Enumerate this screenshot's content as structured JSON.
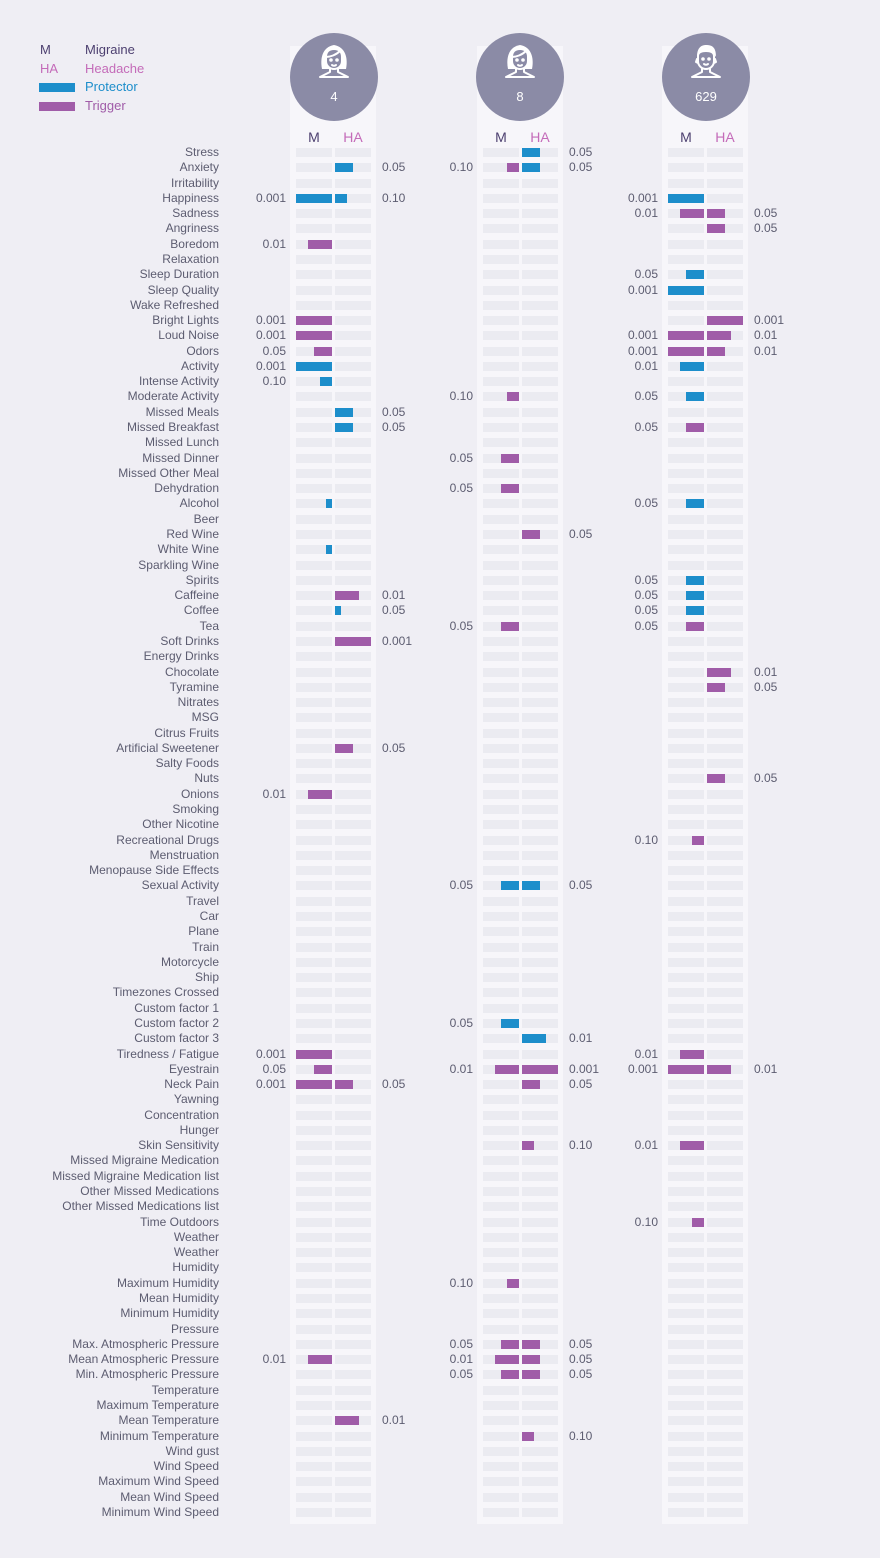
{
  "legend": {
    "migraine_key": "M",
    "migraine_label": "Migraine",
    "headache_key": "HA",
    "headache_label": "Headache",
    "protector_label": "Protector",
    "trigger_label": "Trigger"
  },
  "colors": {
    "protector": "#1d8ecb",
    "trigger": "#a05ca8",
    "migraine_text": "#4d4070",
    "headache_text": "#c46bb9",
    "avatar": "#8b8ba6"
  },
  "chart_data": {
    "type": "bar",
    "value_scale": "bar length encodes strength of effect; printed value is p-value",
    "columns": [
      {
        "count": "4",
        "icon": "female-avatar-icon",
        "m_label": "M",
        "ha_label": "HA"
      },
      {
        "count": "8",
        "icon": "female-avatar-icon",
        "m_label": "M",
        "ha_label": "HA"
      },
      {
        "count": "629",
        "icon": "male-avatar-icon",
        "m_label": "M",
        "ha_label": "HA"
      }
    ],
    "factors": [
      "Stress",
      "Anxiety",
      "Irritability",
      "Happiness",
      "Sadness",
      "Angriness",
      "Boredom",
      "Relaxation",
      "Sleep Duration",
      "Sleep Quality",
      "Wake Refreshed",
      "Bright Lights",
      "Loud Noise",
      "Odors",
      "Activity",
      "Intense Activity",
      "Moderate Activity",
      "Missed Meals",
      "Missed Breakfast",
      "Missed Lunch",
      "Missed Dinner",
      "Missed Other Meal",
      "Dehydration",
      "Alcohol",
      "Beer",
      "Red Wine",
      "White Wine",
      "Sparkling Wine",
      "Spirits",
      "Caffeine",
      "Coffee",
      "Tea",
      "Soft Drinks",
      "Energy Drinks",
      "Chocolate",
      "Tyramine",
      "Nitrates",
      "MSG",
      "Citrus Fruits",
      "Artificial Sweetener",
      "Salty Foods",
      "Nuts",
      "Onions",
      "Smoking",
      "Other Nicotine",
      "Recreational Drugs",
      "Menstruation",
      "Menopause Side Effects",
      "Sexual Activity",
      "Travel",
      "Car",
      "Plane",
      "Train",
      "Motorcycle",
      "Ship",
      "Timezones Crossed",
      "Custom factor 1",
      "Custom factor 2",
      "Custom factor 3",
      "Tiredness / Fatigue",
      "Eyestrain",
      "Neck Pain",
      "Yawning",
      "Concentration",
      "Hunger",
      "Skin Sensitivity",
      "Missed Migraine Medication",
      "Missed Migraine Medication list",
      "Other Missed Medications",
      "Other Missed Medications list",
      "Time Outdoors",
      "Weather",
      "Weather",
      "Humidity",
      "Maximum Humidity",
      "Mean Humidity",
      "Minimum Humidity",
      "Pressure",
      "Max. Atmospheric Pressure",
      "Mean Atmospheric Pressure",
      "Min. Atmospheric Pressure",
      "Temperature",
      "Maximum Temperature",
      "Mean Temperature",
      "Minimum Temperature",
      "Wind gust",
      "Wind Speed",
      "Maximum Wind Speed",
      "Mean Wind Speed",
      "Minimum Wind Speed"
    ],
    "bars": [
      {
        "col": 0,
        "side": "HA",
        "row": 1,
        "kind": "protector",
        "strength": 0.5,
        "p": "0.05"
      },
      {
        "col": 0,
        "side": "M",
        "row": 3,
        "kind": "protector",
        "strength": 1.0,
        "p": "0.001"
      },
      {
        "col": 0,
        "side": "HA",
        "row": 3,
        "kind": "protector",
        "strength": 0.33,
        "p": "0.10"
      },
      {
        "col": 0,
        "side": "M",
        "row": 6,
        "kind": "trigger",
        "strength": 0.67,
        "p": "0.01"
      },
      {
        "col": 0,
        "side": "M",
        "row": 11,
        "kind": "trigger",
        "strength": 1.0,
        "p": "0.001"
      },
      {
        "col": 0,
        "side": "M",
        "row": 12,
        "kind": "trigger",
        "strength": 1.0,
        "p": "0.001"
      },
      {
        "col": 0,
        "side": "M",
        "row": 13,
        "kind": "trigger",
        "strength": 0.5,
        "p": "0.05"
      },
      {
        "col": 0,
        "side": "M",
        "row": 14,
        "kind": "protector",
        "strength": 1.0,
        "p": "0.001"
      },
      {
        "col": 0,
        "side": "M",
        "row": 15,
        "kind": "protector",
        "strength": 0.33,
        "p": "0.10"
      },
      {
        "col": 0,
        "side": "HA",
        "row": 17,
        "kind": "protector",
        "strength": 0.5,
        "p": "0.05"
      },
      {
        "col": 0,
        "side": "HA",
        "row": 18,
        "kind": "protector",
        "strength": 0.5,
        "p": "0.05"
      },
      {
        "col": 0,
        "side": "M",
        "row": 23,
        "kind": "protector",
        "strength": 0.17,
        "p": ""
      },
      {
        "col": 0,
        "side": "M",
        "row": 26,
        "kind": "protector",
        "strength": 0.17,
        "p": ""
      },
      {
        "col": 0,
        "side": "HA",
        "row": 29,
        "kind": "trigger",
        "strength": 0.67,
        "p": "0.01"
      },
      {
        "col": 0,
        "side": "HA",
        "row": 30,
        "kind": "protector",
        "strength": 0.17,
        "p": "0.05"
      },
      {
        "col": 0,
        "side": "HA",
        "row": 32,
        "kind": "trigger",
        "strength": 1.0,
        "p": "0.001"
      },
      {
        "col": 0,
        "side": "HA",
        "row": 39,
        "kind": "trigger",
        "strength": 0.5,
        "p": "0.05"
      },
      {
        "col": 0,
        "side": "M",
        "row": 42,
        "kind": "trigger",
        "strength": 0.67,
        "p": "0.01"
      },
      {
        "col": 0,
        "side": "M",
        "row": 59,
        "kind": "trigger",
        "strength": 1.0,
        "p": "0.001"
      },
      {
        "col": 0,
        "side": "M",
        "row": 60,
        "kind": "trigger",
        "strength": 0.5,
        "p": "0.05"
      },
      {
        "col": 0,
        "side": "M",
        "row": 61,
        "kind": "trigger",
        "strength": 1.0,
        "p": "0.001"
      },
      {
        "col": 0,
        "side": "HA",
        "row": 61,
        "kind": "trigger",
        "strength": 0.5,
        "p": "0.05"
      },
      {
        "col": 0,
        "side": "M",
        "row": 79,
        "kind": "trigger",
        "strength": 0.67,
        "p": "0.01"
      },
      {
        "col": 0,
        "side": "HA",
        "row": 83,
        "kind": "trigger",
        "strength": 0.67,
        "p": "0.01"
      },
      {
        "col": 1,
        "side": "HA",
        "row": 0,
        "kind": "protector",
        "strength": 0.5,
        "p": "0.05"
      },
      {
        "col": 1,
        "side": "M",
        "row": 1,
        "kind": "trigger",
        "strength": 0.33,
        "p": "0.10"
      },
      {
        "col": 1,
        "side": "HA",
        "row": 1,
        "kind": "protector",
        "strength": 0.5,
        "p": "0.05"
      },
      {
        "col": 1,
        "side": "M",
        "row": 16,
        "kind": "trigger",
        "strength": 0.33,
        "p": "0.10"
      },
      {
        "col": 1,
        "side": "M",
        "row": 20,
        "kind": "trigger",
        "strength": 0.5,
        "p": "0.05"
      },
      {
        "col": 1,
        "side": "M",
        "row": 22,
        "kind": "trigger",
        "strength": 0.5,
        "p": "0.05"
      },
      {
        "col": 1,
        "side": "HA",
        "row": 25,
        "kind": "trigger",
        "strength": 0.5,
        "p": "0.05"
      },
      {
        "col": 1,
        "side": "M",
        "row": 31,
        "kind": "trigger",
        "strength": 0.5,
        "p": "0.05"
      },
      {
        "col": 1,
        "side": "M",
        "row": 48,
        "kind": "protector",
        "strength": 0.5,
        "p": "0.05"
      },
      {
        "col": 1,
        "side": "HA",
        "row": 48,
        "kind": "protector",
        "strength": 0.5,
        "p": "0.05"
      },
      {
        "col": 1,
        "side": "M",
        "row": 57,
        "kind": "protector",
        "strength": 0.5,
        "p": "0.05"
      },
      {
        "col": 1,
        "side": "HA",
        "row": 58,
        "kind": "protector",
        "strength": 0.67,
        "p": "0.01"
      },
      {
        "col": 1,
        "side": "M",
        "row": 60,
        "kind": "trigger",
        "strength": 0.67,
        "p": "0.01"
      },
      {
        "col": 1,
        "side": "HA",
        "row": 60,
        "kind": "trigger",
        "strength": 1.0,
        "p": "0.001"
      },
      {
        "col": 1,
        "side": "HA",
        "row": 61,
        "kind": "trigger",
        "strength": 0.5,
        "p": "0.05"
      },
      {
        "col": 1,
        "side": "HA",
        "row": 65,
        "kind": "trigger",
        "strength": 0.33,
        "p": "0.10"
      },
      {
        "col": 1,
        "side": "M",
        "row": 74,
        "kind": "trigger",
        "strength": 0.33,
        "p": "0.10"
      },
      {
        "col": 1,
        "side": "M",
        "row": 78,
        "kind": "trigger",
        "strength": 0.5,
        "p": "0.05"
      },
      {
        "col": 1,
        "side": "HA",
        "row": 78,
        "kind": "trigger",
        "strength": 0.5,
        "p": "0.05"
      },
      {
        "col": 1,
        "side": "M",
        "row": 79,
        "kind": "trigger",
        "strength": 0.67,
        "p": "0.01"
      },
      {
        "col": 1,
        "side": "HA",
        "row": 79,
        "kind": "trigger",
        "strength": 0.5,
        "p": "0.05"
      },
      {
        "col": 1,
        "side": "M",
        "row": 80,
        "kind": "trigger",
        "strength": 0.5,
        "p": "0.05"
      },
      {
        "col": 1,
        "side": "HA",
        "row": 80,
        "kind": "trigger",
        "strength": 0.5,
        "p": "0.05"
      },
      {
        "col": 1,
        "side": "HA",
        "row": 84,
        "kind": "trigger",
        "strength": 0.33,
        "p": "0.10"
      },
      {
        "col": 2,
        "side": "M",
        "row": 3,
        "kind": "protector",
        "strength": 1.0,
        "p": "0.001"
      },
      {
        "col": 2,
        "side": "M",
        "row": 4,
        "kind": "trigger",
        "strength": 0.67,
        "p": "0.01"
      },
      {
        "col": 2,
        "side": "HA",
        "row": 4,
        "kind": "trigger",
        "strength": 0.5,
        "p": "0.05"
      },
      {
        "col": 2,
        "side": "HA",
        "row": 5,
        "kind": "trigger",
        "strength": 0.5,
        "p": "0.05"
      },
      {
        "col": 2,
        "side": "M",
        "row": 8,
        "kind": "protector",
        "strength": 0.5,
        "p": "0.05"
      },
      {
        "col": 2,
        "side": "M",
        "row": 9,
        "kind": "protector",
        "strength": 1.0,
        "p": "0.001"
      },
      {
        "col": 2,
        "side": "HA",
        "row": 11,
        "kind": "trigger",
        "strength": 1.0,
        "p": "0.001"
      },
      {
        "col": 2,
        "side": "M",
        "row": 12,
        "kind": "trigger",
        "strength": 1.0,
        "p": "0.001"
      },
      {
        "col": 2,
        "side": "HA",
        "row": 12,
        "kind": "trigger",
        "strength": 0.67,
        "p": "0.01"
      },
      {
        "col": 2,
        "side": "M",
        "row": 13,
        "kind": "trigger",
        "strength": 1.0,
        "p": "0.001"
      },
      {
        "col": 2,
        "side": "HA",
        "row": 13,
        "kind": "trigger",
        "strength": 0.5,
        "p": "0.01"
      },
      {
        "col": 2,
        "side": "M",
        "row": 14,
        "kind": "protector",
        "strength": 0.67,
        "p": "0.01"
      },
      {
        "col": 2,
        "side": "M",
        "row": 16,
        "kind": "protector",
        "strength": 0.5,
        "p": "0.05"
      },
      {
        "col": 2,
        "side": "M",
        "row": 18,
        "kind": "trigger",
        "strength": 0.5,
        "p": "0.05"
      },
      {
        "col": 2,
        "side": "M",
        "row": 23,
        "kind": "protector",
        "strength": 0.5,
        "p": "0.05"
      },
      {
        "col": 2,
        "side": "M",
        "row": 28,
        "kind": "protector",
        "strength": 0.5,
        "p": "0.05"
      },
      {
        "col": 2,
        "side": "M",
        "row": 29,
        "kind": "protector",
        "strength": 0.5,
        "p": "0.05"
      },
      {
        "col": 2,
        "side": "M",
        "row": 30,
        "kind": "protector",
        "strength": 0.5,
        "p": "0.05"
      },
      {
        "col": 2,
        "side": "M",
        "row": 31,
        "kind": "trigger",
        "strength": 0.5,
        "p": "0.05"
      },
      {
        "col": 2,
        "side": "HA",
        "row": 34,
        "kind": "trigger",
        "strength": 0.67,
        "p": "0.01"
      },
      {
        "col": 2,
        "side": "HA",
        "row": 35,
        "kind": "trigger",
        "strength": 0.5,
        "p": "0.05"
      },
      {
        "col": 2,
        "side": "HA",
        "row": 41,
        "kind": "trigger",
        "strength": 0.5,
        "p": "0.05"
      },
      {
        "col": 2,
        "side": "M",
        "row": 45,
        "kind": "trigger",
        "strength": 0.33,
        "p": "0.10"
      },
      {
        "col": 2,
        "side": "M",
        "row": 59,
        "kind": "trigger",
        "strength": 0.67,
        "p": "0.01"
      },
      {
        "col": 2,
        "side": "M",
        "row": 60,
        "kind": "trigger",
        "strength": 1.0,
        "p": "0.001"
      },
      {
        "col": 2,
        "side": "HA",
        "row": 60,
        "kind": "trigger",
        "strength": 0.67,
        "p": "0.01"
      },
      {
        "col": 2,
        "side": "M",
        "row": 65,
        "kind": "trigger",
        "strength": 0.67,
        "p": "0.01"
      },
      {
        "col": 2,
        "side": "M",
        "row": 70,
        "kind": "trigger",
        "strength": 0.33,
        "p": "0.10"
      }
    ]
  }
}
